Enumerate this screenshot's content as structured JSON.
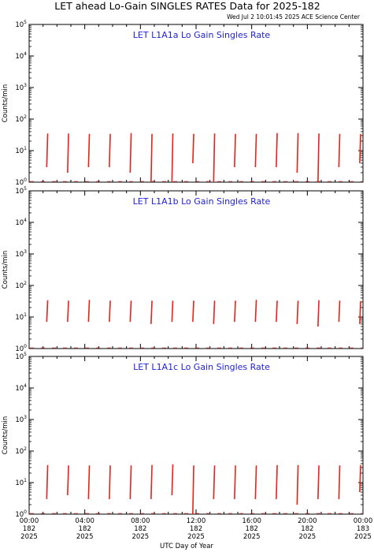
{
  "header": {
    "title": "LET ahead Lo-Gain SINGLES RATES Data for 2025-182",
    "timestamp": "Wed Jul  2 10:01:45 2025 ACE Science Center"
  },
  "colors": {
    "series": "#e8201a",
    "panel_title": "#1f1fd6",
    "axes": "#000000"
  },
  "chart_data": [
    {
      "type": "line",
      "title": "LET L1A1a Lo Gain Singles Rate",
      "ylabel": "Counts/min",
      "yscale": "log",
      "ylim": [
        1,
        100000
      ],
      "xlim": [
        "00:00",
        "24:00"
      ],
      "spikes": [
        {
          "t": "01:20",
          "min": 3,
          "max": 35
        },
        {
          "t": "02:50",
          "min": 2,
          "max": 35
        },
        {
          "t": "04:20",
          "min": 3,
          "max": 34
        },
        {
          "t": "05:50",
          "min": 3,
          "max": 34
        },
        {
          "t": "07:20",
          "min": 2,
          "max": 36
        },
        {
          "t": "08:50",
          "min": 1,
          "max": 34
        },
        {
          "t": "10:20",
          "min": 1,
          "max": 35
        },
        {
          "t": "11:50",
          "min": 4,
          "max": 34
        },
        {
          "t": "13:20",
          "min": 1,
          "max": 35
        },
        {
          "t": "14:50",
          "min": 3,
          "max": 34
        },
        {
          "t": "16:20",
          "min": 3,
          "max": 34
        },
        {
          "t": "17:50",
          "min": 3,
          "max": 36
        },
        {
          "t": "19:20",
          "min": 2,
          "max": 36
        },
        {
          "t": "20:50",
          "min": 1,
          "max": 35
        },
        {
          "t": "22:20",
          "min": 3,
          "max": 34
        },
        {
          "t": "23:50",
          "min": 4,
          "max": 34
        }
      ]
    },
    {
      "type": "line",
      "title": "LET L1A1b Lo Gain Singles Rate",
      "ylabel": "Counts/min",
      "yscale": "log",
      "ylim": [
        1,
        100000
      ],
      "xlim": [
        "00:00",
        "24:00"
      ],
      "spikes": [
        {
          "t": "01:20",
          "min": 7,
          "max": 34
        },
        {
          "t": "02:50",
          "min": 7,
          "max": 33
        },
        {
          "t": "04:20",
          "min": 7,
          "max": 35
        },
        {
          "t": "05:50",
          "min": 7,
          "max": 33
        },
        {
          "t": "07:20",
          "min": 7,
          "max": 33
        },
        {
          "t": "08:50",
          "min": 6,
          "max": 33
        },
        {
          "t": "10:20",
          "min": 7,
          "max": 33
        },
        {
          "t": "11:50",
          "min": 7,
          "max": 33
        },
        {
          "t": "13:20",
          "min": 6,
          "max": 33
        },
        {
          "t": "14:50",
          "min": 7,
          "max": 33
        },
        {
          "t": "16:20",
          "min": 7,
          "max": 35
        },
        {
          "t": "17:50",
          "min": 7,
          "max": 33
        },
        {
          "t": "19:20",
          "min": 6,
          "max": 33
        },
        {
          "t": "20:50",
          "min": 5,
          "max": 34
        },
        {
          "t": "22:20",
          "min": 7,
          "max": 33
        },
        {
          "t": "23:50",
          "min": 6,
          "max": 32
        }
      ]
    },
    {
      "type": "line",
      "title": "LET L1A1c Lo Gain Singles Rate",
      "ylabel": "Counts/min",
      "yscale": "log",
      "ylim": [
        1,
        100000
      ],
      "xlim": [
        "00:00",
        "24:00"
      ],
      "xlabel": "UTC Day of Year",
      "xticks": [
        {
          "time": "00:00",
          "day": "182",
          "year": "2025"
        },
        {
          "time": "04:00",
          "day": "182",
          "year": "2025"
        },
        {
          "time": "08:00",
          "day": "182",
          "year": "2025"
        },
        {
          "time": "12:00",
          "day": "182",
          "year": "2025"
        },
        {
          "time": "16:00",
          "day": "182",
          "year": "2025"
        },
        {
          "time": "20:00",
          "day": "182",
          "year": "2025"
        },
        {
          "time": "00:00",
          "day": "183",
          "year": "2025"
        }
      ],
      "spikes": [
        {
          "t": "01:20",
          "min": 3,
          "max": 36
        },
        {
          "t": "02:50",
          "min": 4,
          "max": 35
        },
        {
          "t": "04:20",
          "min": 3,
          "max": 35
        },
        {
          "t": "05:50",
          "min": 3,
          "max": 35
        },
        {
          "t": "07:20",
          "min": 3,
          "max": 35
        },
        {
          "t": "08:50",
          "min": 3,
          "max": 36
        },
        {
          "t": "10:20",
          "min": 4,
          "max": 38
        },
        {
          "t": "11:50",
          "min": 1,
          "max": 35
        },
        {
          "t": "13:20",
          "min": 3,
          "max": 35
        },
        {
          "t": "14:50",
          "min": 3,
          "max": 35
        },
        {
          "t": "16:20",
          "min": 3,
          "max": 35
        },
        {
          "t": "17:50",
          "min": 3,
          "max": 36
        },
        {
          "t": "19:20",
          "min": 2,
          "max": 36
        },
        {
          "t": "20:50",
          "min": 3,
          "max": 35
        },
        {
          "t": "22:20",
          "min": 3,
          "max": 35
        },
        {
          "t": "23:50",
          "min": 5,
          "max": 36
        }
      ]
    }
  ]
}
